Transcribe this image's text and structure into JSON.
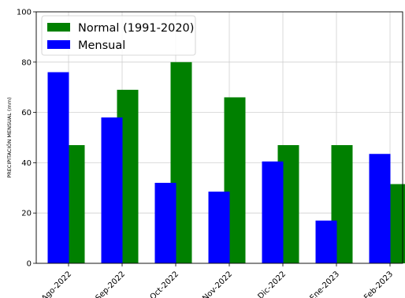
{
  "chart_data": {
    "type": "bar",
    "title": "",
    "xlabel": "",
    "ylabel": "PRECIPITACIÓN MENSUAL (mm)",
    "ylim": [
      0,
      100
    ],
    "yticks": [
      0,
      20,
      40,
      60,
      80,
      100
    ],
    "grid": true,
    "legend_position": "top-left",
    "categories": [
      "Ago-2022",
      "Sep-2022",
      "Oct-2022",
      "Nov-2022",
      "Dic-2022",
      "Ene-2023",
      "Feb-2023"
    ],
    "series": [
      {
        "name": "Normal (1991-2020)",
        "color": "#008000",
        "values": [
          47,
          69,
          80,
          66,
          47,
          47,
          31.5
        ]
      },
      {
        "name": "Mensual",
        "color": "#0000ff",
        "values": [
          76,
          58,
          32,
          28.5,
          40.5,
          17,
          43.5
        ]
      }
    ]
  }
}
